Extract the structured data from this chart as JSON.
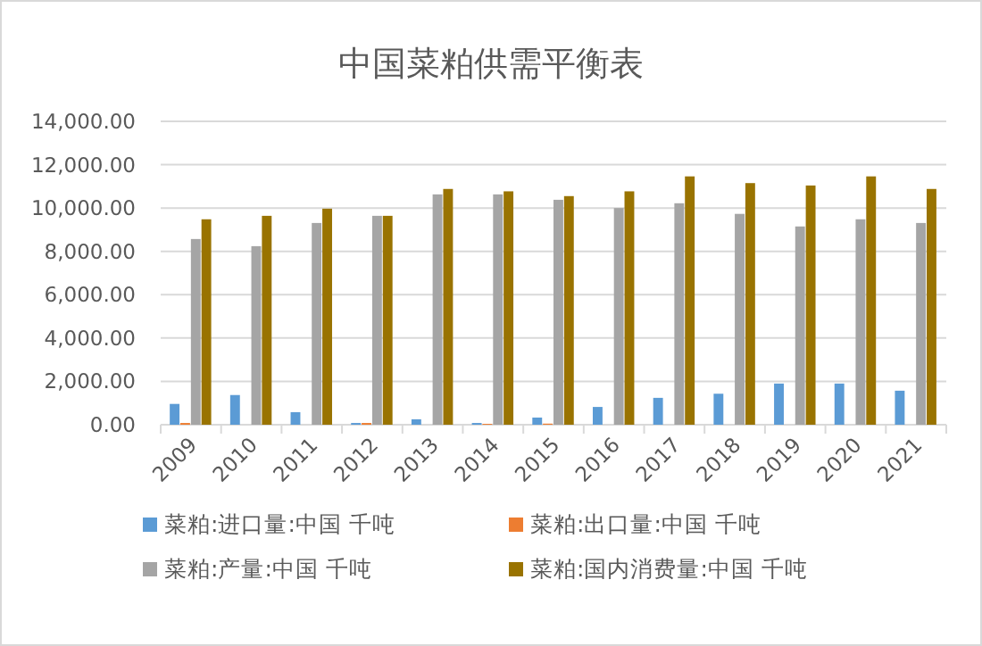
{
  "chart_data": {
    "type": "bar",
    "title": "中国菜粕供需平衡表",
    "categories": [
      "2009",
      "2010",
      "2011",
      "2012",
      "2013",
      "2014",
      "2015",
      "2016",
      "2017",
      "2018",
      "2019",
      "2020",
      "2021"
    ],
    "series": [
      {
        "name": "菜粕:进口量:中国 千吨",
        "color": "#5b9bd5",
        "values": [
          960,
          1370,
          580,
          80,
          250,
          80,
          330,
          820,
          1240,
          1430,
          1900,
          1900,
          1570
        ]
      },
      {
        "name": "菜粕:出口量:中国 千吨",
        "color": "#ed7d31",
        "values": [
          80,
          null,
          null,
          80,
          null,
          40,
          50,
          0,
          0,
          0,
          0,
          0,
          0
        ]
      },
      {
        "name": "菜粕:产量:中国 千吨",
        "color": "#a5a5a5",
        "values": [
          8570,
          8240,
          9310,
          9640,
          10630,
          10630,
          10380,
          10000,
          10220,
          9730,
          9150,
          9480,
          9310
        ]
      },
      {
        "name": "菜粕:国内消费量:中国 千吨",
        "color": "#997300",
        "values": [
          9480,
          9640,
          9970,
          9640,
          10880,
          10770,
          10550,
          10770,
          11460,
          11150,
          11040,
          11460,
          10880
        ]
      }
    ],
    "ylim": [
      0,
      14000
    ],
    "yticks": [
      {
        "value": 0,
        "label": "0.00"
      },
      {
        "value": 2000,
        "label": "2,000.00"
      },
      {
        "value": 4000,
        "label": "4,000.00"
      },
      {
        "value": 6000,
        "label": "6,000.00"
      },
      {
        "value": 8000,
        "label": "8,000.00"
      },
      {
        "value": 10000,
        "label": "10,000.00"
      },
      {
        "value": 12000,
        "label": "12,000.00"
      },
      {
        "value": 14000,
        "label": "14,000.00"
      }
    ],
    "grid": "y",
    "legend": "bottom"
  }
}
